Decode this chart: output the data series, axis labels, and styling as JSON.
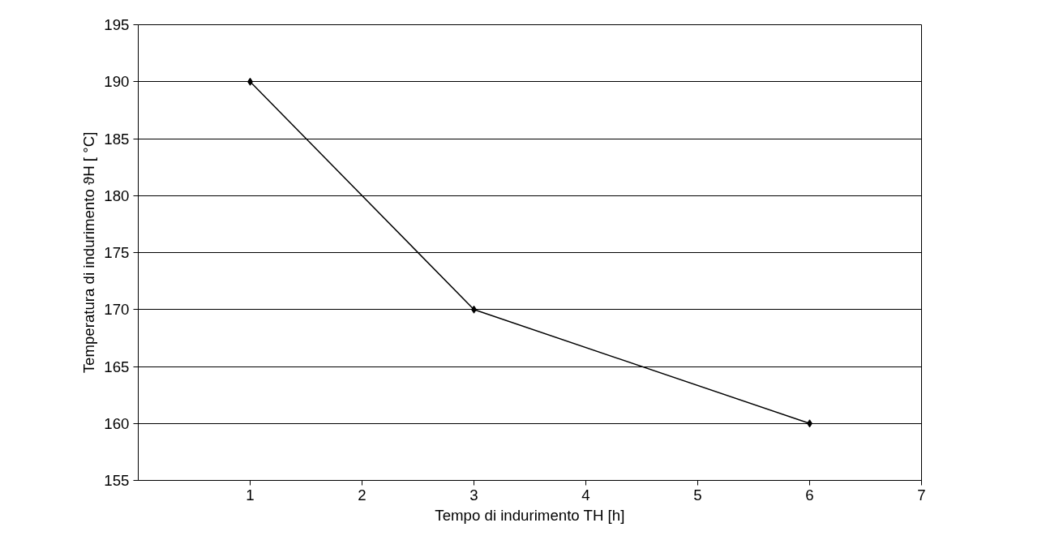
{
  "chart_data": {
    "type": "line",
    "xlabel": "Tempo di indurimento TH [h]",
    "ylabel": "Temperatura di indurimento ϑH [ °C]",
    "x": [
      1,
      3,
      6
    ],
    "series": [
      {
        "color": "#000000",
        "values": [
          190,
          170,
          160
        ]
      }
    ],
    "xlim": [
      0,
      7
    ],
    "xticks": [
      1,
      2,
      3,
      4,
      5,
      6,
      7
    ],
    "ylim": [
      155,
      195
    ],
    "yticks": [
      155,
      160,
      165,
      170,
      175,
      180,
      185,
      190,
      195
    ],
    "grid": "y",
    "marker": "diamond",
    "line_style": "solid"
  }
}
